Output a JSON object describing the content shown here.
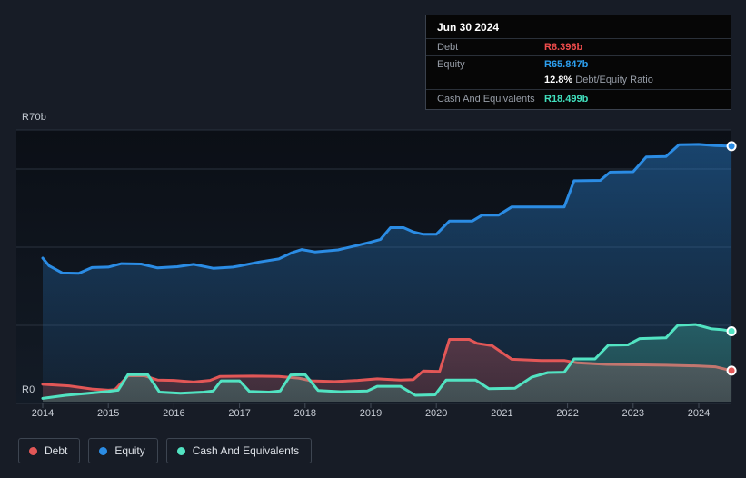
{
  "tooltip": {
    "date": "Jun 30 2024",
    "debt_label": "Debt",
    "debt_value": "R8.396b",
    "equity_label": "Equity",
    "equity_value": "R65.847b",
    "ratio_value": "12.8%",
    "ratio_suffix": " Debt/Equity Ratio",
    "cash_label": "Cash And Equivalents",
    "cash_value": "R18.499b"
  },
  "legend": {
    "items": [
      {
        "label": "Debt",
        "color": "#e25757"
      },
      {
        "label": "Equity",
        "color": "#2b8ce4"
      },
      {
        "label": "Cash And Equivalents",
        "color": "#52e3c2"
      }
    ]
  },
  "axes": {
    "y_top_label": "R70b",
    "y_zero_label": "R0",
    "years": [
      "2014",
      "2015",
      "2016",
      "2017",
      "2018",
      "2019",
      "2020",
      "2021",
      "2022",
      "2023",
      "2024"
    ]
  },
  "colors": {
    "debt": "#e25757",
    "equity": "#2b8ce4",
    "cash": "#52e3c2",
    "debt_value": "#f04c4c",
    "equity_value": "#2da0f0",
    "cash_value": "#41dfbd",
    "gridline": "#2a323e",
    "tick": "#434c58",
    "marker_ring": "#ffffff"
  },
  "chart_data": {
    "type": "area",
    "unit": "R billions (ZAR)",
    "x_range": [
      2014,
      2024.5
    ],
    "y_range": [
      0,
      70
    ],
    "x_ticks": [
      2014,
      2015,
      2016,
      2017,
      2018,
      2019,
      2020,
      2021,
      2022,
      2023,
      2024
    ],
    "gridlines": [
      70,
      60,
      40,
      20,
      0
    ],
    "y_tick_labels": {
      "70": "R70b",
      "0": "R0"
    },
    "legend_position": "bottom-left",
    "draw_order": [
      "equity",
      "debt",
      "cash"
    ],
    "series": [
      {
        "id": "debt",
        "name": "Debt",
        "color": "#e25757",
        "end_value": 8.396,
        "points": [
          [
            2014.0,
            4.9
          ],
          [
            2014.4,
            4.5
          ],
          [
            2014.75,
            3.7
          ],
          [
            2015.0,
            3.4
          ],
          [
            2015.1,
            3.5
          ],
          [
            2015.3,
            7.1
          ],
          [
            2015.55,
            7.1
          ],
          [
            2015.75,
            6.0
          ],
          [
            2016.0,
            5.9
          ],
          [
            2016.3,
            5.5
          ],
          [
            2016.55,
            5.9
          ],
          [
            2016.7,
            6.9
          ],
          [
            2017.2,
            7.0
          ],
          [
            2017.6,
            6.9
          ],
          [
            2017.9,
            6.5
          ],
          [
            2018.1,
            5.8
          ],
          [
            2018.45,
            5.6
          ],
          [
            2018.8,
            5.9
          ],
          [
            2019.1,
            6.3
          ],
          [
            2019.45,
            6.0
          ],
          [
            2019.65,
            6.1
          ],
          [
            2019.8,
            8.3
          ],
          [
            2020.05,
            8.2
          ],
          [
            2020.2,
            16.4
          ],
          [
            2020.5,
            16.4
          ],
          [
            2020.62,
            15.4
          ],
          [
            2020.85,
            14.8
          ],
          [
            2021.15,
            11.3
          ],
          [
            2021.6,
            11.0
          ],
          [
            2021.95,
            11.0
          ],
          [
            2022.15,
            10.4
          ],
          [
            2022.6,
            10.0
          ],
          [
            2023.0,
            9.9
          ],
          [
            2023.5,
            9.8
          ],
          [
            2024.0,
            9.6
          ],
          [
            2024.25,
            9.4
          ],
          [
            2024.5,
            8.396
          ]
        ]
      },
      {
        "id": "equity",
        "name": "Equity",
        "color": "#2b8ce4",
        "end_value": 65.847,
        "points": [
          [
            2014.0,
            37.2
          ],
          [
            2014.1,
            35.2
          ],
          [
            2014.3,
            33.4
          ],
          [
            2014.55,
            33.3
          ],
          [
            2014.75,
            34.8
          ],
          [
            2015.0,
            34.9
          ],
          [
            2015.2,
            35.8
          ],
          [
            2015.5,
            35.7
          ],
          [
            2015.75,
            34.7
          ],
          [
            2016.05,
            35.0
          ],
          [
            2016.3,
            35.6
          ],
          [
            2016.6,
            34.6
          ],
          [
            2016.9,
            34.9
          ],
          [
            2017.0,
            35.2
          ],
          [
            2017.3,
            36.2
          ],
          [
            2017.6,
            37.0
          ],
          [
            2017.8,
            38.6
          ],
          [
            2017.95,
            39.4
          ],
          [
            2018.15,
            38.8
          ],
          [
            2018.5,
            39.3
          ],
          [
            2018.8,
            40.5
          ],
          [
            2019.0,
            41.3
          ],
          [
            2019.15,
            42.0
          ],
          [
            2019.3,
            45.0
          ],
          [
            2019.5,
            45.0
          ],
          [
            2019.65,
            43.9
          ],
          [
            2019.8,
            43.3
          ],
          [
            2020.0,
            43.3
          ],
          [
            2020.2,
            46.7
          ],
          [
            2020.55,
            46.7
          ],
          [
            2020.7,
            48.2
          ],
          [
            2020.95,
            48.2
          ],
          [
            2021.15,
            50.3
          ],
          [
            2021.6,
            50.3
          ],
          [
            2021.95,
            50.3
          ],
          [
            2022.1,
            57.0
          ],
          [
            2022.5,
            57.1
          ],
          [
            2022.65,
            59.2
          ],
          [
            2023.0,
            59.3
          ],
          [
            2023.2,
            63.1
          ],
          [
            2023.5,
            63.2
          ],
          [
            2023.7,
            66.2
          ],
          [
            2024.0,
            66.3
          ],
          [
            2024.25,
            66.0
          ],
          [
            2024.5,
            65.847
          ]
        ]
      },
      {
        "id": "cash",
        "name": "Cash And Equivalents",
        "color": "#52e3c2",
        "end_value": 18.499,
        "points": [
          [
            2014.0,
            1.3
          ],
          [
            2014.35,
            2.1
          ],
          [
            2014.7,
            2.6
          ],
          [
            2015.0,
            3.1
          ],
          [
            2015.15,
            3.4
          ],
          [
            2015.3,
            7.4
          ],
          [
            2015.6,
            7.4
          ],
          [
            2015.78,
            2.9
          ],
          [
            2016.1,
            2.6
          ],
          [
            2016.45,
            2.9
          ],
          [
            2016.6,
            3.2
          ],
          [
            2016.72,
            5.8
          ],
          [
            2017.0,
            5.8
          ],
          [
            2017.15,
            3.1
          ],
          [
            2017.45,
            2.9
          ],
          [
            2017.62,
            3.2
          ],
          [
            2017.78,
            7.3
          ],
          [
            2018.0,
            7.4
          ],
          [
            2018.2,
            3.3
          ],
          [
            2018.55,
            3.0
          ],
          [
            2018.95,
            3.2
          ],
          [
            2019.1,
            4.4
          ],
          [
            2019.45,
            4.4
          ],
          [
            2019.68,
            2.1
          ],
          [
            2019.98,
            2.2
          ],
          [
            2020.15,
            6.0
          ],
          [
            2020.6,
            6.0
          ],
          [
            2020.8,
            3.8
          ],
          [
            2021.2,
            3.9
          ],
          [
            2021.45,
            6.7
          ],
          [
            2021.7,
            7.9
          ],
          [
            2021.95,
            8.0
          ],
          [
            2022.1,
            11.4
          ],
          [
            2022.42,
            11.4
          ],
          [
            2022.62,
            14.9
          ],
          [
            2022.92,
            15.0
          ],
          [
            2023.1,
            16.6
          ],
          [
            2023.5,
            16.8
          ],
          [
            2023.68,
            20.0
          ],
          [
            2023.95,
            20.2
          ],
          [
            2024.2,
            19.1
          ],
          [
            2024.35,
            18.9
          ],
          [
            2024.5,
            18.499
          ]
        ]
      }
    ]
  }
}
